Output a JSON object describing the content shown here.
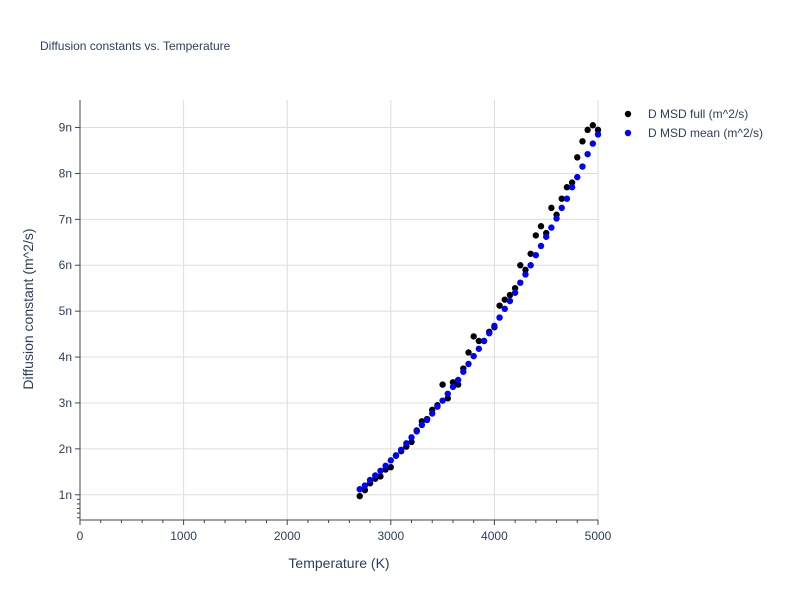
{
  "chart_data": {
    "type": "scatter",
    "title": "Diffusion constants vs. Temperature",
    "xlabel": "Temperature (K)",
    "ylabel": "Diffusion constant (m^2/s)",
    "xlim": [
      0,
      5000
    ],
    "ylim": [
      0.45,
      9.6
    ],
    "x_ticks": [
      0,
      1000,
      2000,
      3000,
      4000,
      5000
    ],
    "x_tick_labels": [
      "0",
      "1000",
      "2000",
      "3000",
      "4000",
      "5000"
    ],
    "y_ticks": [
      1,
      2,
      3,
      4,
      5,
      6,
      7,
      8,
      9
    ],
    "y_tick_labels": [
      "1n",
      "2n",
      "3n",
      "4n",
      "5n",
      "6n",
      "7n",
      "8n",
      "9n"
    ],
    "y_unit_scale": "1e-9",
    "grid": true,
    "legend_position": "top-right",
    "series": [
      {
        "name": "D MSD full (m^2/s)",
        "color": "#000000",
        "x": [
          2700,
          2750,
          2800,
          2850,
          2900,
          2950,
          3000,
          3050,
          3100,
          3150,
          3200,
          3250,
          3300,
          3350,
          3400,
          3450,
          3500,
          3550,
          3600,
          3650,
          3700,
          3750,
          3800,
          3850,
          3900,
          3950,
          4000,
          4050,
          4100,
          4150,
          4200,
          4250,
          4300,
          4350,
          4400,
          4450,
          4500,
          4550,
          4600,
          4650,
          4700,
          4750,
          4800,
          4850,
          4900,
          4950,
          5000
        ],
        "values": [
          0.97,
          1.1,
          1.25,
          1.35,
          1.4,
          1.55,
          1.6,
          1.85,
          1.95,
          2.05,
          2.15,
          2.4,
          2.6,
          2.65,
          2.85,
          2.95,
          3.4,
          3.1,
          3.45,
          3.4,
          3.75,
          4.1,
          4.45,
          4.35,
          4.35,
          4.55,
          4.65,
          5.12,
          5.25,
          5.35,
          5.5,
          6.0,
          5.9,
          6.25,
          6.65,
          6.85,
          6.7,
          7.25,
          7.1,
          7.45,
          7.7,
          7.8,
          8.35,
          8.7,
          8.95,
          9.05,
          8.95
        ]
      },
      {
        "name": "D MSD mean (m^2/s)",
        "color": "#0000ff",
        "x": [
          2700,
          2750,
          2800,
          2850,
          2900,
          2950,
          3000,
          3050,
          3100,
          3150,
          3200,
          3250,
          3300,
          3350,
          3400,
          3450,
          3500,
          3550,
          3600,
          3650,
          3700,
          3750,
          3800,
          3850,
          3900,
          3950,
          4000,
          4050,
          4100,
          4150,
          4200,
          4250,
          4300,
          4350,
          4400,
          4450,
          4500,
          4550,
          4600,
          4650,
          4700,
          4750,
          4800,
          4850,
          4900,
          4950,
          5000
        ],
        "values": [
          1.12,
          1.2,
          1.32,
          1.42,
          1.52,
          1.63,
          1.75,
          1.86,
          1.98,
          2.12,
          2.25,
          2.38,
          2.52,
          2.63,
          2.77,
          2.92,
          3.05,
          3.2,
          3.35,
          3.5,
          3.68,
          3.85,
          4.02,
          4.18,
          4.35,
          4.52,
          4.68,
          4.86,
          5.05,
          5.22,
          5.4,
          5.62,
          5.8,
          6.0,
          6.22,
          6.42,
          6.62,
          6.82,
          7.02,
          7.25,
          7.45,
          7.7,
          7.92,
          8.15,
          8.42,
          8.65,
          8.85
        ]
      }
    ]
  }
}
